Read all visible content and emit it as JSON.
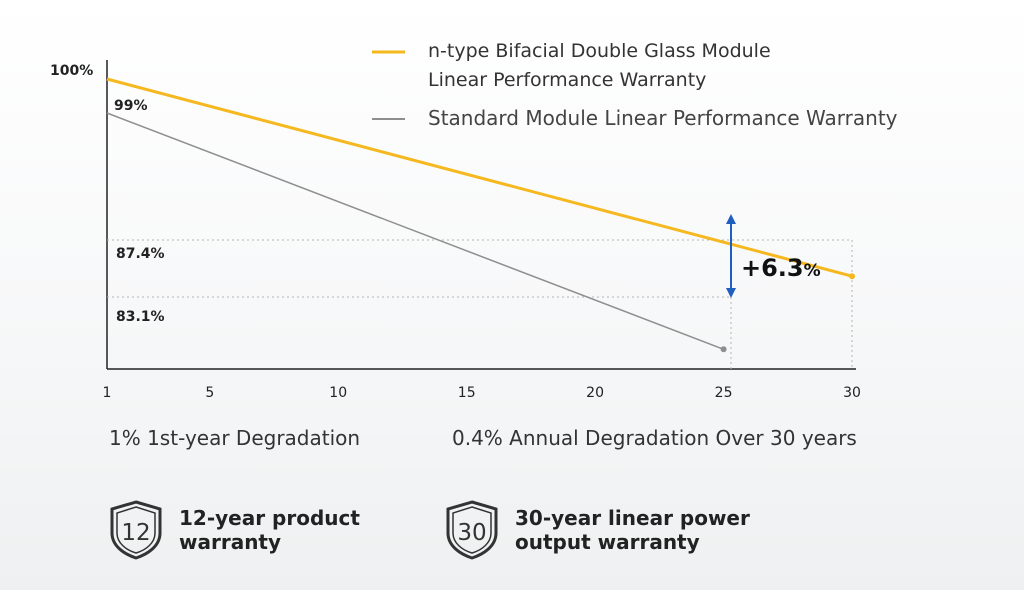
{
  "chart_data": {
    "type": "line",
    "x_ticks": [
      "1",
      "5",
      "10",
      "15",
      "20",
      "25",
      "30"
    ],
    "xlim": [
      1,
      30
    ],
    "ylim": [
      82,
      100
    ],
    "y_tick_label": "100%",
    "series": [
      {
        "name": "n-type Bifacial Double Glass Module Linear Performance Warranty",
        "legend_lines": [
          "n-type Bifacial Double Glass Module",
          "Linear Performance Warranty"
        ],
        "color": "#f5b81e",
        "x": [
          1,
          25,
          30
        ],
        "y": [
          99,
          89.4,
          87.4
        ]
      },
      {
        "name": "Standard Module Linear Performance Warranty",
        "legend_lines": [
          "Standard Module Linear Performance Warranty"
        ],
        "color": "#8e8e8e",
        "x": [
          1,
          25
        ],
        "y": [
          97,
          83.1
        ]
      }
    ],
    "annotations": {
      "start_label": "99%",
      "label_87": "87.4%",
      "label_83": "83.1%",
      "delta_value": "+6.3",
      "delta_unit": "%",
      "arrow_color": "#1f5fbf"
    }
  },
  "captions": {
    "first_year": "1% 1st-year Degradation",
    "annual": "0.4% Annual Degradation Over 30 years"
  },
  "badges": [
    {
      "number": "12",
      "line1": "12-year product",
      "line2": "warranty",
      "icon": "shield-12-icon"
    },
    {
      "number": "30",
      "line1": "30-year linear power",
      "line2": "output warranty",
      "icon": "shield-30-icon"
    }
  ]
}
